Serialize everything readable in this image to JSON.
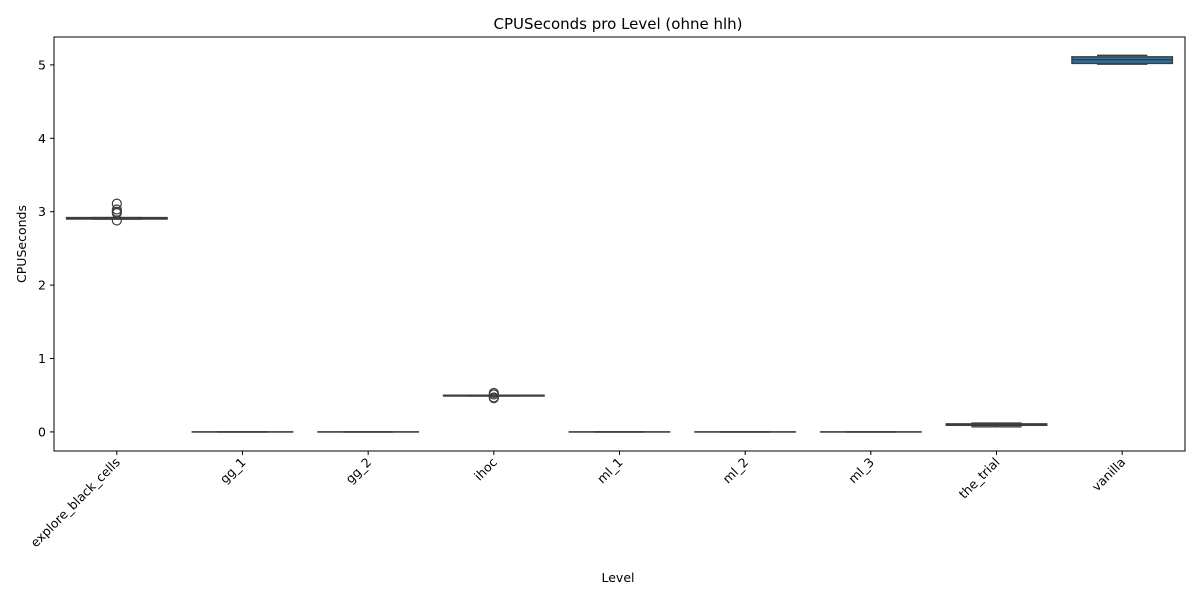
{
  "chart_data": {
    "type": "box",
    "title": "CPUSeconds pro Level (ohne hlh)",
    "xlabel": "Level",
    "ylabel": "CPUSeconds",
    "ylim": [
      -0.26,
      5.38
    ],
    "yticks": [
      0,
      1,
      2,
      3,
      4,
      5
    ],
    "grid": false,
    "box_color": "#1f77b4",
    "line_color": "#3d3d3d",
    "categories": [
      "explore_black_cells",
      "gg_1",
      "gg_2",
      "ihoc",
      "ml_1",
      "ml_2",
      "ml_3",
      "the_trial",
      "vanilla"
    ],
    "boxes": [
      {
        "q1": 2.9,
        "median": 2.91,
        "q3": 2.92,
        "whislo": 2.9,
        "whishi": 2.92,
        "fliers": [
          3.11,
          3.03,
          3.0,
          2.98,
          2.88
        ]
      },
      {
        "q1": 0.0,
        "median": 0.0,
        "q3": 0.0,
        "whislo": 0.0,
        "whishi": 0.0,
        "fliers": []
      },
      {
        "q1": 0.0,
        "median": 0.0,
        "q3": 0.0,
        "whislo": 0.0,
        "whishi": 0.0,
        "fliers": []
      },
      {
        "q1": 0.49,
        "median": 0.49,
        "q3": 0.5,
        "whislo": 0.49,
        "whishi": 0.5,
        "fliers": [
          0.53,
          0.51,
          0.47,
          0.46
        ]
      },
      {
        "q1": 0.0,
        "median": 0.0,
        "q3": 0.0,
        "whislo": 0.0,
        "whishi": 0.0,
        "fliers": []
      },
      {
        "q1": 0.0,
        "median": 0.0,
        "q3": 0.0,
        "whislo": 0.0,
        "whishi": 0.0,
        "fliers": []
      },
      {
        "q1": 0.0,
        "median": 0.0,
        "q3": 0.0,
        "whislo": 0.0,
        "whishi": 0.0,
        "fliers": []
      },
      {
        "q1": 0.09,
        "median": 0.1,
        "q3": 0.11,
        "whislo": 0.07,
        "whishi": 0.12,
        "fliers": []
      },
      {
        "q1": 5.02,
        "median": 5.07,
        "q3": 5.11,
        "whislo": 5.01,
        "whishi": 5.13,
        "fliers": []
      }
    ]
  }
}
